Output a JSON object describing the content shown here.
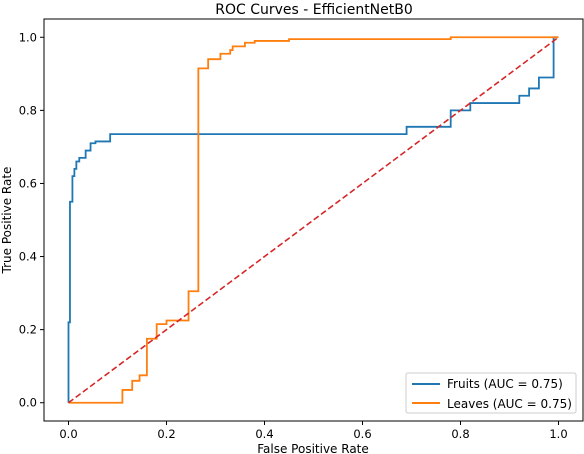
{
  "chart_data": {
    "type": "line",
    "title": "ROC Curves - EfficientNetB0",
    "xlabel": "False Positive Rate",
    "ylabel": "True Positive Rate",
    "xlim": [
      -0.05,
      1.05
    ],
    "ylim": [
      -0.05,
      1.05
    ],
    "xticks": [
      0.0,
      0.2,
      0.4,
      0.6,
      0.8,
      1.0
    ],
    "yticks": [
      0.0,
      0.2,
      0.4,
      0.6,
      0.8,
      1.0
    ],
    "xtick_labels": [
      "0.0",
      "0.2",
      "0.4",
      "0.6",
      "0.8",
      "1.0"
    ],
    "ytick_labels": [
      "0.0",
      "0.2",
      "0.4",
      "0.6",
      "0.8",
      "1.0"
    ],
    "legend_position": "lower-right",
    "series": [
      {
        "name": "Fruits (AUC = 0.75)",
        "color": "#1f77b4",
        "x": [
          0.0,
          0.0,
          0.003,
          0.003,
          0.008,
          0.008,
          0.012,
          0.012,
          0.016,
          0.016,
          0.022,
          0.022,
          0.035,
          0.035,
          0.045,
          0.045,
          0.055,
          0.055,
          0.085,
          0.085,
          0.69,
          0.69,
          0.78,
          0.78,
          0.82,
          0.82,
          0.92,
          0.92,
          0.94,
          0.94,
          0.96,
          0.96,
          0.99,
          0.99,
          1.0
        ],
        "y": [
          0.0,
          0.22,
          0.22,
          0.55,
          0.55,
          0.62,
          0.62,
          0.64,
          0.64,
          0.66,
          0.66,
          0.67,
          0.67,
          0.69,
          0.69,
          0.71,
          0.71,
          0.715,
          0.715,
          0.735,
          0.735,
          0.755,
          0.755,
          0.8,
          0.8,
          0.82,
          0.82,
          0.84,
          0.84,
          0.86,
          0.86,
          0.89,
          0.89,
          1.0,
          1.0
        ]
      },
      {
        "name": "Leaves (AUC = 0.75)",
        "color": "#ff7f0e",
        "x": [
          0.0,
          0.11,
          0.11,
          0.13,
          0.13,
          0.145,
          0.145,
          0.16,
          0.16,
          0.18,
          0.18,
          0.2,
          0.2,
          0.245,
          0.245,
          0.265,
          0.265,
          0.285,
          0.285,
          0.31,
          0.31,
          0.33,
          0.33,
          0.335,
          0.335,
          0.36,
          0.36,
          0.38,
          0.38,
          0.45,
          0.45,
          0.78,
          0.78,
          1.0
        ],
        "y": [
          0.0,
          0.0,
          0.035,
          0.035,
          0.06,
          0.06,
          0.075,
          0.075,
          0.175,
          0.175,
          0.215,
          0.215,
          0.225,
          0.225,
          0.305,
          0.305,
          0.915,
          0.915,
          0.94,
          0.94,
          0.955,
          0.955,
          0.965,
          0.965,
          0.975,
          0.975,
          0.985,
          0.985,
          0.99,
          0.99,
          0.995,
          0.995,
          1.0,
          1.0
        ]
      },
      {
        "name": "",
        "color": "#d62728",
        "style": "dashed",
        "x": [
          0.0,
          1.0
        ],
        "y": [
          0.0,
          1.0
        ]
      }
    ]
  }
}
